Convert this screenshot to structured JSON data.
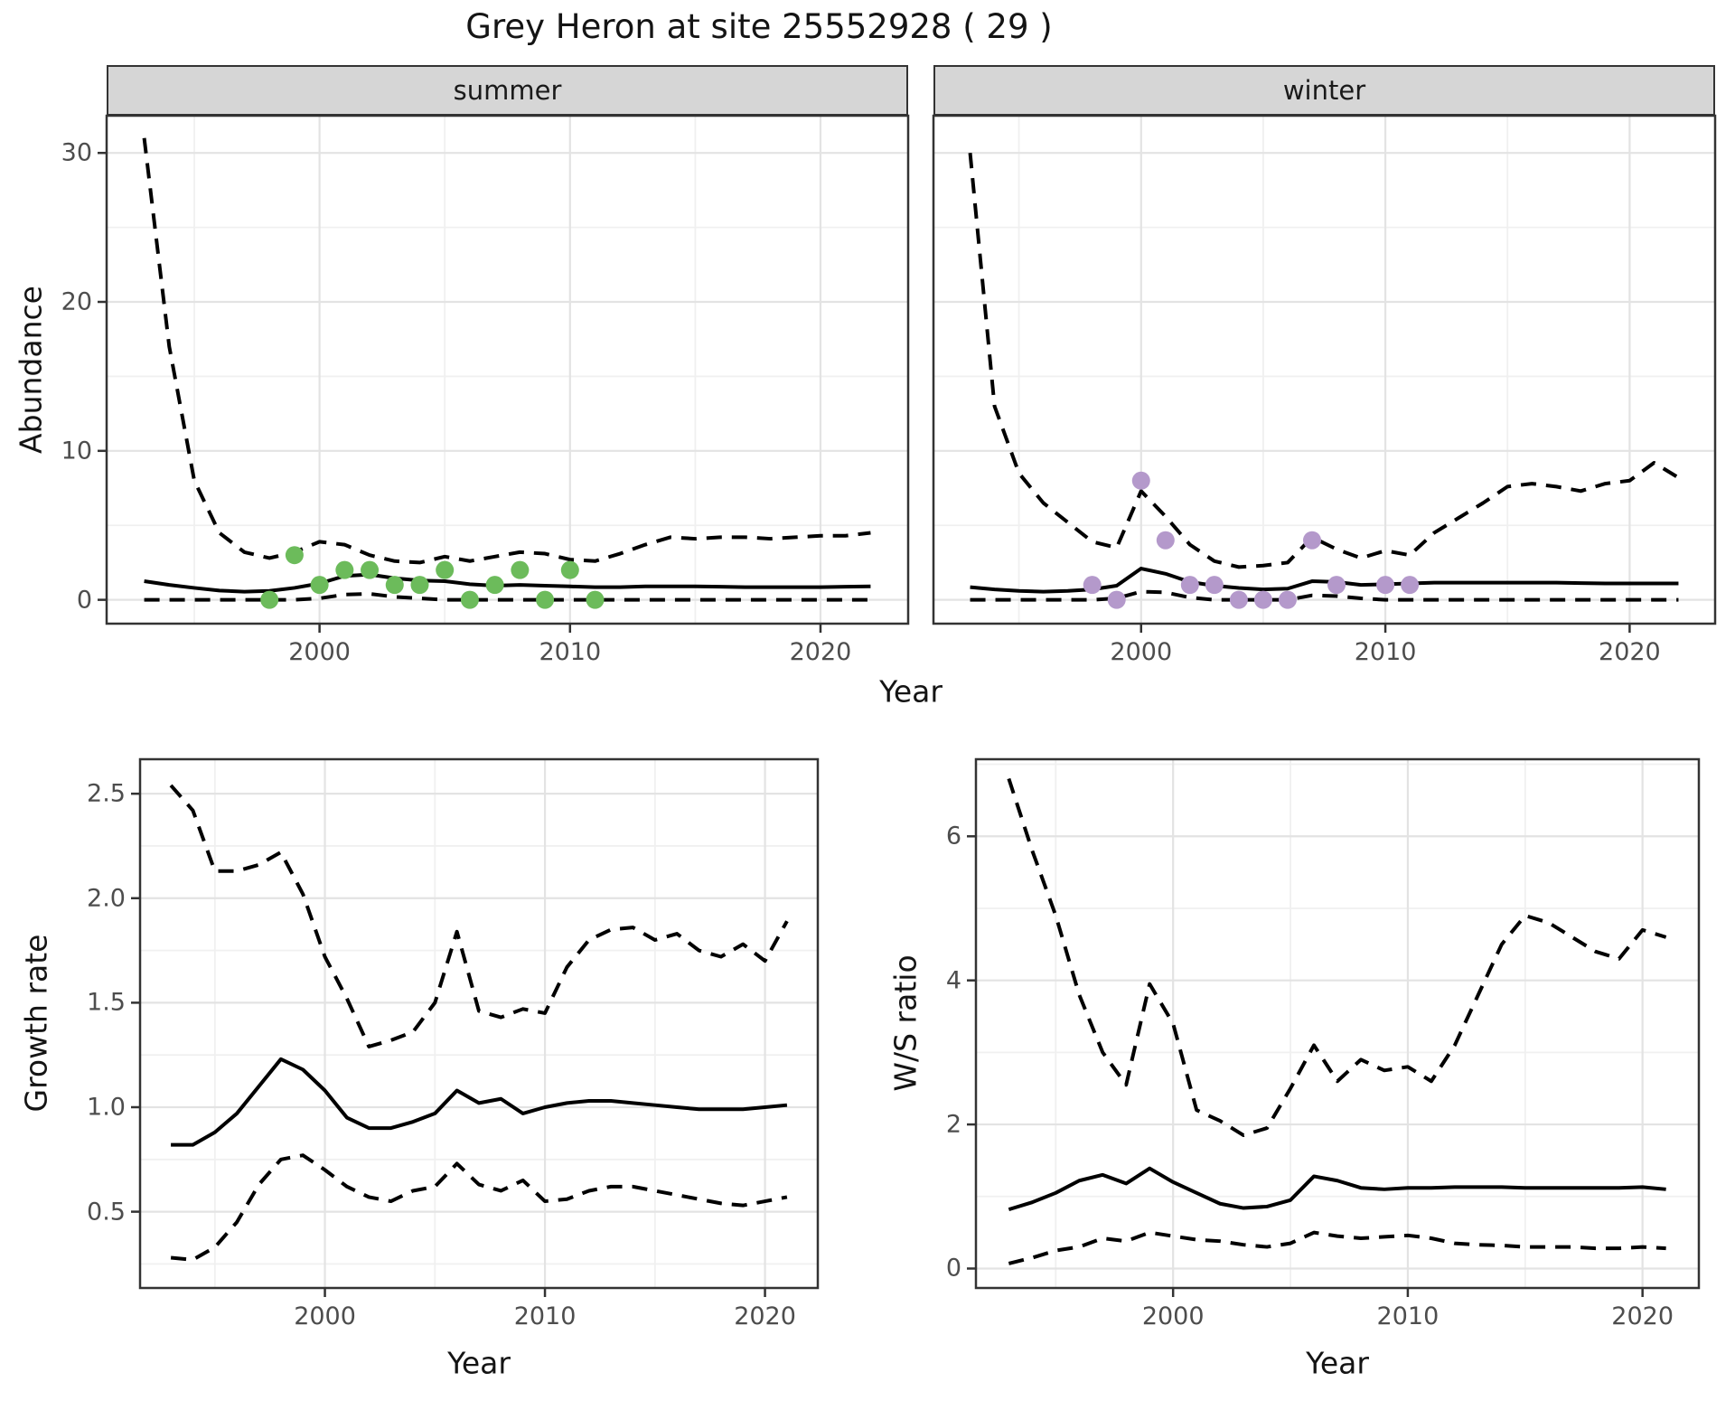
{
  "title": "Grey Heron at site 25552928 ( 29 )",
  "colors": {
    "summer_points": "#6cbb5b",
    "winter_points": "#b499cb",
    "line": "#000000",
    "panel_border": "#333333",
    "grid_major": "#e3e3e3",
    "grid_minor": "#f0f0f0",
    "strip_bg": "#d6d6d6",
    "tick_text": "#4d4d4d"
  },
  "chart_data": [
    {
      "type": "line",
      "facet": "summer",
      "ylabel": "Abundance",
      "xlabel": "Year",
      "grid": true,
      "x": [
        1993,
        1994,
        1995,
        1996,
        1997,
        1998,
        1999,
        2000,
        2001,
        2002,
        2003,
        2004,
        2005,
        2006,
        2007,
        2008,
        2009,
        2010,
        2011,
        2012,
        2013,
        2014,
        2015,
        2016,
        2017,
        2018,
        2019,
        2020,
        2021,
        2022
      ],
      "series": [
        {
          "name": "upper_ci",
          "style": "dashed",
          "values": [
            31,
            17,
            8,
            4.5,
            3.2,
            2.8,
            3.2,
            3.9,
            3.7,
            3.0,
            2.6,
            2.5,
            2.9,
            2.6,
            2.9,
            3.2,
            3.1,
            2.7,
            2.6,
            3.1,
            3.7,
            4.2,
            4.1,
            4.2,
            4.2,
            4.1,
            4.2,
            4.3,
            4.3,
            4.5
          ]
        },
        {
          "name": "median",
          "style": "solid",
          "values": [
            1.25,
            1.0,
            0.8,
            0.62,
            0.55,
            0.6,
            0.8,
            1.1,
            1.6,
            1.7,
            1.45,
            1.3,
            1.25,
            1.05,
            0.95,
            1.0,
            0.95,
            0.9,
            0.85,
            0.85,
            0.9,
            0.9,
            0.9,
            0.88,
            0.85,
            0.85,
            0.85,
            0.85,
            0.88,
            0.9
          ]
        },
        {
          "name": "lower_ci",
          "style": "dashed",
          "values": [
            0,
            0,
            0,
            0,
            0,
            0,
            0,
            0.1,
            0.35,
            0.4,
            0.2,
            0.1,
            0,
            0,
            0,
            0,
            0,
            0,
            0,
            0,
            0,
            0,
            0,
            0,
            0,
            0,
            0,
            0,
            0,
            0
          ]
        }
      ],
      "points": {
        "name": "observed_counts",
        "color": "#6cbb5b",
        "x": [
          1998,
          1999,
          2000,
          2001,
          2002,
          2003,
          2004,
          2005,
          2006,
          2007,
          2008,
          2009,
          2010,
          2011
        ],
        "y": [
          0,
          3,
          1,
          2,
          2,
          1,
          1,
          2,
          0,
          1,
          2,
          0,
          2,
          0
        ]
      },
      "xlim": [
        1991.5,
        2023.5
      ],
      "ylim": [
        -1.6,
        32.5
      ],
      "xticks": [
        2000,
        2010,
        2020
      ],
      "xminor": [
        1995,
        2005,
        2015
      ],
      "yticks": [
        0,
        10,
        20,
        30
      ],
      "yminor": [
        5,
        15,
        25
      ]
    },
    {
      "type": "line",
      "facet": "winter",
      "ylabel": "Abundance",
      "xlabel": "Year",
      "grid": true,
      "x": [
        1993,
        1994,
        1995,
        1996,
        1997,
        1998,
        1999,
        2000,
        2001,
        2002,
        2003,
        2004,
        2005,
        2006,
        2007,
        2008,
        2009,
        2010,
        2011,
        2012,
        2013,
        2014,
        2015,
        2016,
        2017,
        2018,
        2019,
        2020,
        2021,
        2022
      ],
      "series": [
        {
          "name": "upper_ci",
          "style": "dashed",
          "values": [
            30,
            13,
            8.5,
            6.5,
            5.2,
            3.9,
            3.5,
            7.3,
            5.6,
            3.7,
            2.6,
            2.2,
            2.3,
            2.5,
            4.2,
            3.4,
            2.8,
            3.3,
            3.0,
            4.5,
            5.5,
            6.5,
            7.6,
            7.8,
            7.6,
            7.3,
            7.8,
            8.0,
            9.2,
            8.2
          ]
        },
        {
          "name": "median",
          "style": "solid",
          "values": [
            0.85,
            0.7,
            0.6,
            0.55,
            0.6,
            0.7,
            0.95,
            2.1,
            1.75,
            1.2,
            0.95,
            0.8,
            0.7,
            0.75,
            1.25,
            1.2,
            1.0,
            1.05,
            1.1,
            1.15,
            1.15,
            1.15,
            1.15,
            1.15,
            1.15,
            1.12,
            1.1,
            1.1,
            1.1,
            1.1
          ]
        },
        {
          "name": "lower_ci",
          "style": "dashed",
          "values": [
            0,
            0,
            0,
            0,
            0,
            0,
            0.1,
            0.55,
            0.5,
            0.15,
            0,
            0,
            0,
            0,
            0.3,
            0.25,
            0.1,
            0,
            0,
            0,
            0,
            0,
            0,
            0,
            0,
            0,
            0,
            0,
            0,
            0
          ]
        }
      ],
      "points": {
        "name": "observed_counts",
        "color": "#b499cb",
        "x": [
          1998,
          1999,
          2000,
          2001,
          2002,
          2003,
          2004,
          2005,
          2006,
          2007,
          2008,
          2010,
          2011
        ],
        "y": [
          1,
          0,
          8,
          4,
          1,
          1,
          0,
          0,
          0,
          4,
          1,
          1,
          1
        ]
      },
      "xlim": [
        1991.5,
        2023.5
      ],
      "ylim": [
        -1.6,
        32.5
      ],
      "xticks": [
        2000,
        2010,
        2020
      ],
      "xminor": [
        1995,
        2005,
        2015
      ],
      "yticks": [],
      "yminor": [
        5,
        15,
        25
      ]
    },
    {
      "type": "line",
      "facet": "",
      "ylabel": "Growth rate",
      "xlabel": "Year",
      "grid": true,
      "x": [
        1993,
        1994,
        1995,
        1996,
        1997,
        1998,
        1999,
        2000,
        2001,
        2002,
        2003,
        2004,
        2005,
        2006,
        2007,
        2008,
        2009,
        2010,
        2011,
        2012,
        2013,
        2014,
        2015,
        2016,
        2017,
        2018,
        2019,
        2020,
        2021
      ],
      "series": [
        {
          "name": "upper_ci",
          "style": "dashed",
          "values": [
            2.54,
            2.42,
            2.13,
            2.13,
            2.16,
            2.22,
            2.02,
            1.72,
            1.52,
            1.29,
            1.32,
            1.36,
            1.5,
            1.84,
            1.46,
            1.43,
            1.47,
            1.45,
            1.67,
            1.8,
            1.85,
            1.86,
            1.8,
            1.83,
            1.75,
            1.72,
            1.78,
            1.7,
            1.89
          ]
        },
        {
          "name": "median",
          "style": "solid",
          "values": [
            0.82,
            0.82,
            0.88,
            0.97,
            1.1,
            1.23,
            1.18,
            1.08,
            0.95,
            0.9,
            0.9,
            0.93,
            0.97,
            1.08,
            1.02,
            1.04,
            0.97,
            1.0,
            1.02,
            1.03,
            1.03,
            1.02,
            1.01,
            1.0,
            0.99,
            0.99,
            0.99,
            1.0,
            1.01
          ]
        },
        {
          "name": "lower_ci",
          "style": "dashed",
          "values": [
            0.28,
            0.27,
            0.33,
            0.45,
            0.63,
            0.75,
            0.77,
            0.7,
            0.62,
            0.57,
            0.55,
            0.6,
            0.62,
            0.73,
            0.63,
            0.6,
            0.65,
            0.55,
            0.56,
            0.6,
            0.62,
            0.62,
            0.6,
            0.58,
            0.56,
            0.54,
            0.53,
            0.55,
            0.57
          ]
        }
      ],
      "points": null,
      "xlim": [
        1991.6,
        2022.4
      ],
      "ylim": [
        0.135,
        2.665
      ],
      "xticks": [
        2000,
        2010,
        2020
      ],
      "xminor": [
        1995,
        2005,
        2015
      ],
      "yticks": [
        0.5,
        1.0,
        1.5,
        2.0,
        2.5
      ],
      "yminor": [
        0.25,
        0.75,
        1.25,
        1.75,
        2.25
      ],
      "ytick_labels": [
        "0.5",
        "1.0",
        "1.5",
        "2.0",
        "2.5"
      ]
    },
    {
      "type": "line",
      "facet": "",
      "ylabel": "W/S ratio",
      "xlabel": "Year",
      "grid": true,
      "x": [
        1993,
        1994,
        1995,
        1996,
        1997,
        1998,
        1999,
        2000,
        2001,
        2002,
        2003,
        2004,
        2005,
        2006,
        2007,
        2008,
        2009,
        2010,
        2011,
        2012,
        2013,
        2014,
        2015,
        2016,
        2017,
        2018,
        2019,
        2020,
        2021
      ],
      "series": [
        {
          "name": "upper_ci",
          "style": "dashed",
          "values": [
            6.8,
            5.8,
            4.9,
            3.8,
            3.0,
            2.55,
            3.95,
            3.4,
            2.2,
            2.05,
            1.85,
            1.95,
            2.5,
            3.1,
            2.6,
            2.9,
            2.75,
            2.8,
            2.6,
            3.1,
            3.8,
            4.5,
            4.9,
            4.8,
            4.6,
            4.4,
            4.3,
            4.7,
            4.6
          ]
        },
        {
          "name": "median",
          "style": "solid",
          "values": [
            0.82,
            0.92,
            1.05,
            1.22,
            1.3,
            1.18,
            1.39,
            1.2,
            1.05,
            0.9,
            0.84,
            0.86,
            0.95,
            1.28,
            1.22,
            1.12,
            1.1,
            1.12,
            1.12,
            1.13,
            1.13,
            1.13,
            1.12,
            1.12,
            1.12,
            1.12,
            1.12,
            1.13,
            1.1
          ]
        },
        {
          "name": "lower_ci",
          "style": "dashed",
          "values": [
            0.07,
            0.15,
            0.25,
            0.3,
            0.42,
            0.38,
            0.5,
            0.45,
            0.4,
            0.38,
            0.33,
            0.3,
            0.35,
            0.5,
            0.45,
            0.42,
            0.44,
            0.46,
            0.42,
            0.35,
            0.33,
            0.32,
            0.3,
            0.3,
            0.3,
            0.28,
            0.28,
            0.3,
            0.28
          ]
        }
      ],
      "points": null,
      "xlim": [
        1991.6,
        2022.4
      ],
      "ylim": [
        -0.27,
        7.07
      ],
      "xticks": [
        2000,
        2010,
        2020
      ],
      "xminor": [
        1995,
        2005,
        2015
      ],
      "yticks": [
        0,
        2,
        4,
        6
      ],
      "yminor": [
        1,
        3,
        5,
        7
      ],
      "ytick_labels": [
        "0",
        "2",
        "4",
        "6"
      ]
    }
  ]
}
